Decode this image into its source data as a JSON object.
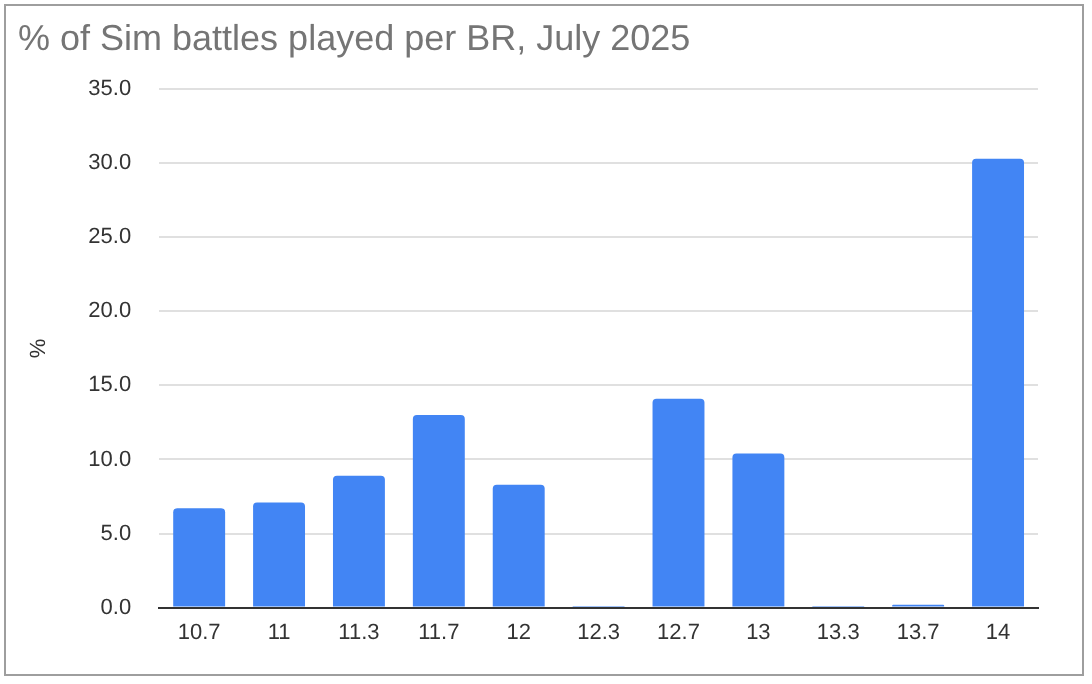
{
  "chart_data": {
    "type": "bar",
    "title": "% of Sim battles played per BR, July 2025",
    "ylabel": "%",
    "categories": [
      "10.7",
      "11",
      "11.3",
      "11.7",
      "12",
      "12.3",
      "12.7",
      "13",
      "13.3",
      "13.7",
      "14"
    ],
    "values": [
      6.7,
      7.1,
      8.9,
      13.0,
      8.3,
      0.1,
      14.1,
      10.4,
      0.1,
      0.2,
      30.3
    ],
    "color": "#4285f4",
    "ylim": [
      0,
      35
    ],
    "yticks": [
      {
        "value": 0,
        "label": "0.0"
      },
      {
        "value": 5,
        "label": "5.0"
      },
      {
        "value": 10,
        "label": "10.0"
      },
      {
        "value": 15,
        "label": "15.0"
      },
      {
        "value": 20,
        "label": "20.0"
      },
      {
        "value": 25,
        "label": "25.0"
      },
      {
        "value": 30,
        "label": "30.0"
      },
      {
        "value": 35,
        "label": "35.0"
      }
    ],
    "grid": "y"
  }
}
